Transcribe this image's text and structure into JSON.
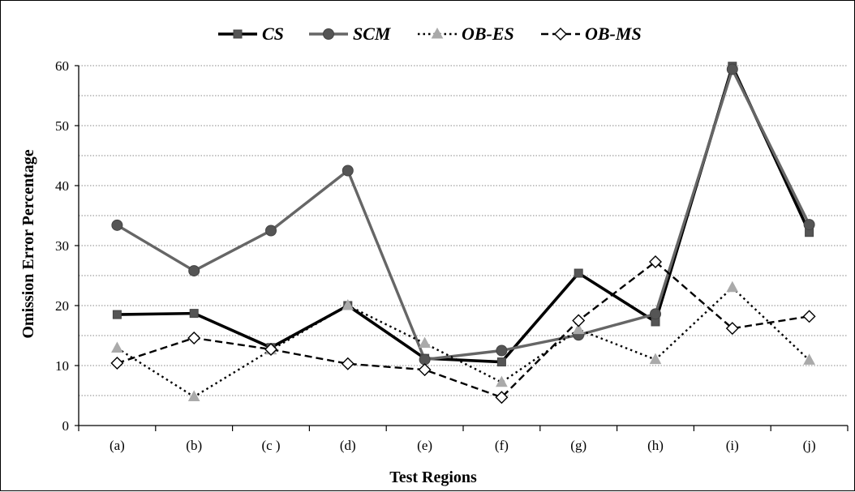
{
  "chart_data": {
    "type": "line",
    "title": "",
    "xlabel": "Test Regions",
    "ylabel": "Omission Error Percentage",
    "ylim": [
      0,
      60
    ],
    "yticks": [
      0,
      10,
      20,
      30,
      40,
      50,
      60
    ],
    "categories": [
      "(a)",
      "(b)",
      "(c )",
      "(d)",
      "(e)",
      "(f)",
      "(g)",
      "(h)",
      "(i)",
      "(j)"
    ],
    "grid": "horizontal dotted, every 5 units",
    "legend_position": "top",
    "series": [
      {
        "name": "CS",
        "marker": "square",
        "line": "solid",
        "color": "#000000",
        "marker_color": "#555555",
        "values": [
          18.5,
          18.7,
          13.0,
          20.0,
          11.2,
          10.6,
          25.4,
          17.3,
          59.9,
          32.2
        ]
      },
      {
        "name": "SCM",
        "marker": "circle",
        "line": "solid",
        "color": "#666666",
        "marker_color": "#555555",
        "values": [
          33.4,
          25.8,
          32.5,
          42.5,
          11.0,
          12.5,
          15.1,
          18.6,
          59.4,
          33.5
        ]
      },
      {
        "name": "OB-ES",
        "marker": "triangle",
        "line": "dotted",
        "color": "#000000",
        "marker_color": "#aaaaaa",
        "values": [
          12.9,
          4.8,
          12.6,
          20.0,
          13.7,
          7.2,
          16.0,
          11.0,
          23.0,
          10.9
        ]
      },
      {
        "name": "OB-MS",
        "marker": "diamond",
        "line": "dashed",
        "color": "#000000",
        "marker_color": "#ffffff",
        "values": [
          10.4,
          14.6,
          12.7,
          10.3,
          9.3,
          4.7,
          17.5,
          27.3,
          16.2,
          18.2
        ]
      }
    ]
  }
}
